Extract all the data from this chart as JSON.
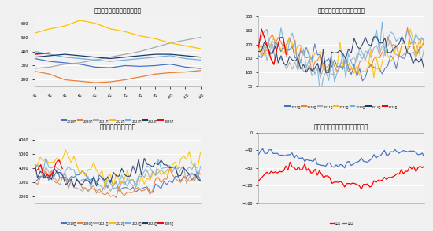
{
  "title_tl": "中国丙烷进口价格走势（月）",
  "title_tr": "中国丙烷月度进口量（万吨）",
  "title_bl": "国内丙烷价格（月均）",
  "title_br": "中国石油气对外贸易差额（万吨）",
  "colors": {
    "blue": "#4472C4",
    "orange": "#ED7D31",
    "gray": "#A9A9A9",
    "yellow": "#FFC000",
    "light_blue": "#70B0E0",
    "dark_blue": "#203864",
    "red": "#FF0000"
  },
  "legend_tl": [
    "2019年",
    "2020年",
    "2021年",
    "2022年",
    "2023年",
    "2024年",
    "2025年"
  ],
  "legend_tr": [
    "2019年",
    "2020年",
    "2021年",
    "2022年",
    "2023年",
    "2024年",
    "2025年"
  ],
  "legend_bl": [
    "2019年",
    "2020年",
    "2021年",
    "2022年",
    "2023年",
    "2024年",
    "2025年"
  ],
  "legend_br": [
    "进口量",
    "出口量"
  ],
  "background": "#F2F2F2",
  "grid_color": "#FFFFFF"
}
